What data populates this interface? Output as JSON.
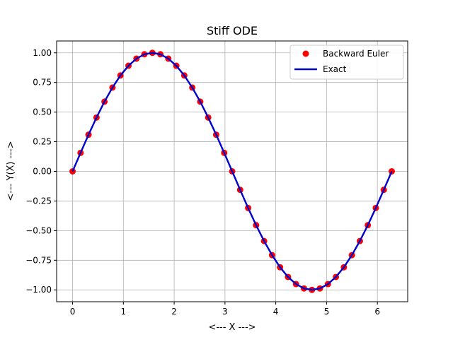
{
  "chart_data": {
    "type": "line",
    "title": "Stiff ODE",
    "xlabel": "<--- X --->",
    "ylabel": "<--- Y(X) --->",
    "xlim": [
      -0.314,
      6.597
    ],
    "ylim": [
      -1.1,
      1.1
    ],
    "xticks": [
      0,
      1,
      2,
      3,
      4,
      5,
      6
    ],
    "xtick_labels": [
      "0",
      "1",
      "2",
      "3",
      "4",
      "5",
      "6"
    ],
    "yticks": [
      -1.0,
      -0.75,
      -0.5,
      -0.25,
      0.0,
      0.25,
      0.5,
      0.75,
      1.0
    ],
    "ytick_labels": [
      "−1.00",
      "−0.75",
      "−0.50",
      "−0.25",
      "0.00",
      "0.25",
      "0.50",
      "0.75",
      "1.00"
    ],
    "grid": true,
    "legend_position": "top-right",
    "series": [
      {
        "name": "Backward Euler",
        "style": "markers",
        "color": "#ff0000",
        "x": [
          0.0,
          0.157,
          0.314,
          0.471,
          0.628,
          0.785,
          0.942,
          1.1,
          1.257,
          1.414,
          1.571,
          1.728,
          1.885,
          2.042,
          2.199,
          2.356,
          2.513,
          2.67,
          2.827,
          2.985,
          3.142,
          3.299,
          3.456,
          3.613,
          3.77,
          3.927,
          4.084,
          4.241,
          4.398,
          4.555,
          4.712,
          4.869,
          5.027,
          5.184,
          5.341,
          5.498,
          5.655,
          5.812,
          5.969,
          6.126,
          6.283
        ],
        "y": [
          0.0,
          0.156,
          0.309,
          0.454,
          0.588,
          0.707,
          0.809,
          0.891,
          0.951,
          0.988,
          1.0,
          0.988,
          0.951,
          0.891,
          0.809,
          0.707,
          0.588,
          0.454,
          0.309,
          0.156,
          0.0,
          -0.156,
          -0.309,
          -0.454,
          -0.588,
          -0.707,
          -0.809,
          -0.891,
          -0.951,
          -0.988,
          -1.0,
          -0.988,
          -0.951,
          -0.891,
          -0.809,
          -0.707,
          -0.588,
          -0.454,
          -0.309,
          -0.156,
          0.0
        ]
      },
      {
        "name": "Exact",
        "style": "line",
        "color": "#0000cc",
        "x": [
          0.0,
          0.157,
          0.314,
          0.471,
          0.628,
          0.785,
          0.942,
          1.1,
          1.257,
          1.414,
          1.571,
          1.728,
          1.885,
          2.042,
          2.199,
          2.356,
          2.513,
          2.67,
          2.827,
          2.985,
          3.142,
          3.299,
          3.456,
          3.613,
          3.77,
          3.927,
          4.084,
          4.241,
          4.398,
          4.555,
          4.712,
          4.869,
          5.027,
          5.184,
          5.341,
          5.498,
          5.655,
          5.812,
          5.969,
          6.126,
          6.283
        ],
        "y": [
          0.0,
          0.156,
          0.309,
          0.454,
          0.588,
          0.707,
          0.809,
          0.891,
          0.951,
          0.988,
          1.0,
          0.988,
          0.951,
          0.891,
          0.809,
          0.707,
          0.588,
          0.454,
          0.309,
          0.156,
          0.0,
          -0.156,
          -0.309,
          -0.454,
          -0.588,
          -0.707,
          -0.809,
          -0.891,
          -0.951,
          -0.988,
          -1.0,
          -0.988,
          -0.951,
          -0.891,
          -0.809,
          -0.707,
          -0.588,
          -0.454,
          -0.309,
          -0.156,
          0.0
        ]
      }
    ]
  }
}
